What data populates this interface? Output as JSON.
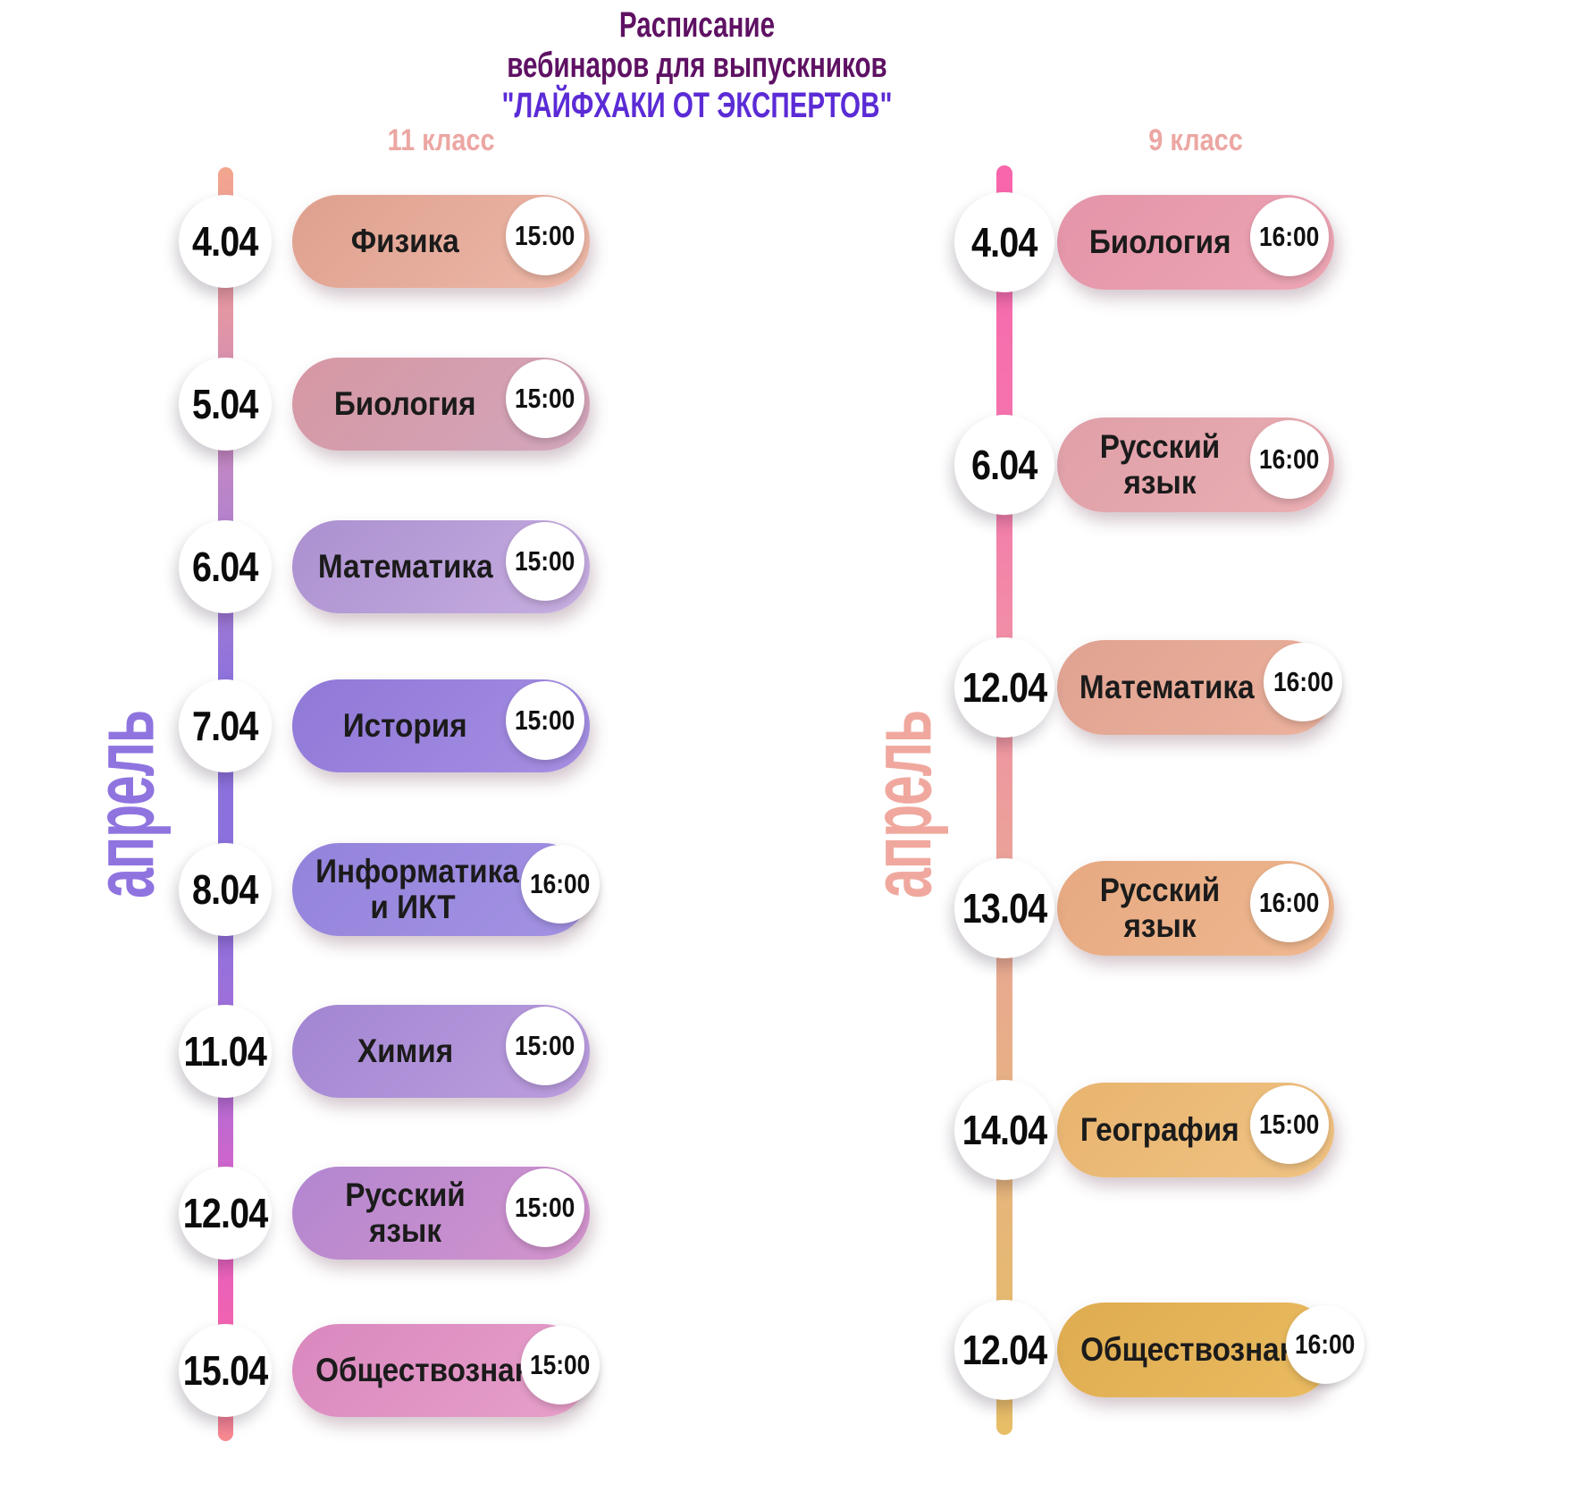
{
  "title": {
    "line1": "Расписание",
    "line2": "вебинаров для выпускников",
    "line3": "\"ЛАЙФХАКИ ОТ ЭКСПЕРТОВ\""
  },
  "colors": {
    "background": "#FFFFFF",
    "title_primary": "#5E1163",
    "title_accent": "#5B2BD6",
    "header_pink": "#ECA7A3",
    "month_left": "#8F74E0",
    "month_right": "#F0A89E",
    "date_text": "#0B0B0B",
    "subject_text": "#1B1B1B",
    "circle_bg": "#FFFFFF"
  },
  "columns": [
    {
      "header": "11 класс",
      "month_label": "апрель",
      "timeline_gradient_css": "linear-gradient(180deg,#F3A68E 0%,#E295A5 12%,#BC85C8 25%,#8E72DC 40%,#8B70DD 58%,#A96FD8 70%,#DE61C6 82%,#F463AE 92%,#F78A90 100%)",
      "items": [
        {
          "date": "4.04",
          "subject": "Физика",
          "time": "15:00",
          "pill_gradient_css": "linear-gradient(135deg,#DFA08E,#EDB8A8)"
        },
        {
          "date": "5.04",
          "subject": "Биология",
          "time": "15:00",
          "pill_gradient_css": "linear-gradient(135deg,#D697A2,#D2A6BC)"
        },
        {
          "date": "6.04",
          "subject": "Математика",
          "time": "15:00",
          "pill_gradient_css": "linear-gradient(135deg,#AB90D0,#C7AEE0)"
        },
        {
          "date": "7.04",
          "subject": "История",
          "time": "15:00",
          "pill_gradient_css": "linear-gradient(135deg,#9078D8,#A58FE2)"
        },
        {
          "date": "8.04",
          "subject": "Информатика и ИКТ",
          "time": "16:00",
          "pill_gradient_css": "linear-gradient(135deg,#9483DB,#A392E3)"
        },
        {
          "date": "11.04",
          "subject": "Химия",
          "time": "15:00",
          "pill_gradient_css": "linear-gradient(135deg,#A285D2,#BC9EDE)"
        },
        {
          "date": "12.04",
          "subject": "Русский язык",
          "time": "15:00",
          "pill_gradient_css": "linear-gradient(135deg,#B286D0,#D494CC)"
        },
        {
          "date": "15.04",
          "subject": "Обществознание",
          "time": "15:00",
          "pill_gradient_css": "linear-gradient(135deg,#D988BE,#E7A0CA)"
        }
      ]
    },
    {
      "header": "9 класс",
      "month_label": "апрель",
      "timeline_gradient_css": "linear-gradient(180deg,#F866AC 0%,#F573AE 20%,#F18FA6 38%,#E9A696 58%,#E6B47E 78%,#E7BE66 100%)",
      "items": [
        {
          "date": "4.04",
          "subject": "Биология",
          "time": "16:00",
          "pill_gradient_css": "linear-gradient(135deg,#E494A8,#EDA6B4)"
        },
        {
          "date": "6.04",
          "subject": "Русский язык",
          "time": "16:00",
          "pill_gradient_css": "linear-gradient(135deg,#DF9FA8,#EAAFB3)"
        },
        {
          "date": "12.04",
          "subject": "Математика",
          "time": "16:00",
          "pill_gradient_css": "linear-gradient(135deg,#E0A291,#EBB29D)"
        },
        {
          "date": "13.04",
          "subject": "Русский язык",
          "time": "16:00",
          "pill_gradient_css": "linear-gradient(135deg,#E6A981,#EFB890)"
        },
        {
          "date": "14.04",
          "subject": "География",
          "time": "15:00",
          "pill_gradient_css": "linear-gradient(135deg,#E8B46F,#F0C383)"
        },
        {
          "date": "12.04",
          "subject": "Обществознание",
          "time": "16:00",
          "pill_gradient_css": "linear-gradient(135deg,#DFAC50,#EABB61)"
        }
      ]
    }
  ]
}
